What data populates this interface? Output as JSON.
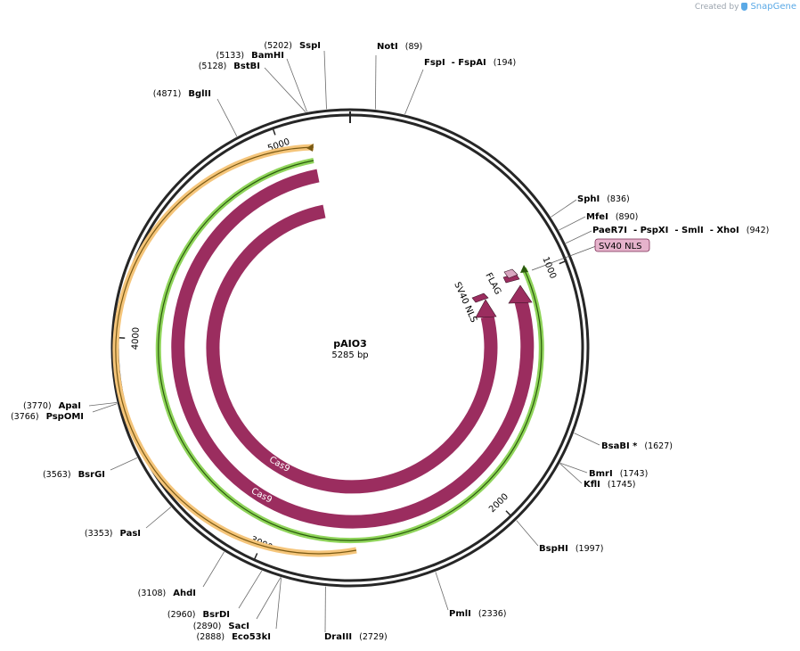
{
  "credit": {
    "prefix": "Created by",
    "brand": "SnapGene"
  },
  "plasmid": {
    "name": "pAIO3",
    "length_label": "5285 bp",
    "length": 5285
  },
  "ticks": [
    {
      "pos": 1000,
      "label": "1000"
    },
    {
      "pos": 2000,
      "label": "2000"
    },
    {
      "pos": 3000,
      "label": "3000"
    },
    {
      "pos": 4000,
      "label": "4000"
    },
    {
      "pos": 5000,
      "label": "5000"
    }
  ],
  "sites": [
    {
      "id": "noti",
      "names": [
        "NotI"
      ],
      "pos_text": "(89)"
    },
    {
      "id": "fspi",
      "names": [
        "FspI",
        "- FspAI"
      ],
      "pos_text": "(194)"
    },
    {
      "id": "sphi",
      "names": [
        "SphI"
      ],
      "pos_text": "(836)"
    },
    {
      "id": "mfei",
      "names": [
        "MfeI"
      ],
      "pos_text": "(890)"
    },
    {
      "id": "paer7i",
      "names": [
        "PaeR7I",
        "- PspXI",
        "- SmlI",
        "- XhoI"
      ],
      "pos_text": "(942)"
    },
    {
      "id": "bsabi",
      "names": [
        "BsaBI *"
      ],
      "pos_text": "(1627)"
    },
    {
      "id": "bmri",
      "names": [
        "BmrI"
      ],
      "pos_text": "(1743)"
    },
    {
      "id": "kfli",
      "names": [
        "KflI"
      ],
      "pos_text": "(1745)"
    },
    {
      "id": "bsphi",
      "names": [
        "BspHI"
      ],
      "pos_text": "(1997)"
    },
    {
      "id": "pmli",
      "names": [
        "PmlI"
      ],
      "pos_text": "(2336)"
    },
    {
      "id": "draiii",
      "names": [
        "DraIII"
      ],
      "pos_text": "(2729)"
    },
    {
      "id": "eco53ki",
      "names": [
        "Eco53kI"
      ],
      "pos_text": "(2888)"
    },
    {
      "id": "saci",
      "names": [
        "SacI"
      ],
      "pos_text": "(2890)"
    },
    {
      "id": "bsrdi",
      "names": [
        "BsrDI"
      ],
      "pos_text": "(2960)"
    },
    {
      "id": "ahdi",
      "names": [
        "AhdI"
      ],
      "pos_text": "(3108)"
    },
    {
      "id": "pasi",
      "names": [
        "PasI"
      ],
      "pos_text": "(3353)"
    },
    {
      "id": "bsrgi",
      "names": [
        "BsrGI"
      ],
      "pos_text": "(3563)"
    },
    {
      "id": "pspomi",
      "names": [
        "PspOMI"
      ],
      "pos_text": "(3766)"
    },
    {
      "id": "apai",
      "names": [
        "ApaI"
      ],
      "pos_text": "(3770)"
    },
    {
      "id": "bglii",
      "names": [
        "BglII"
      ],
      "pos_text": "(4871)"
    },
    {
      "id": "bstbi",
      "names": [
        "BstBI"
      ],
      "pos_text": "(5128)"
    },
    {
      "id": "bamhi",
      "names": [
        "BamHI"
      ],
      "pos_text": "(5133)"
    },
    {
      "id": "sspi",
      "names": [
        "SspI"
      ],
      "pos_text": "(5202)"
    }
  ],
  "features": [
    {
      "id": "sv40-nls-box",
      "label": "SV40 NLS",
      "color": "#e6b3cc"
    },
    {
      "id": "flag",
      "label": "FLAG",
      "color": "#9b2d5f"
    },
    {
      "id": "sv40-nls-inner",
      "label": "SV40 NLS",
      "color": "#9b2d5f"
    },
    {
      "id": "cas9-outer",
      "label": "Cas9",
      "color": "#9b2d5f"
    },
    {
      "id": "cas9-inner",
      "label": "Cas9",
      "color": "#9b2d5f"
    },
    {
      "id": "orf-green",
      "label": "",
      "color": "#8fd45a"
    },
    {
      "id": "orf-orange",
      "label": "",
      "color": "#f5c57a"
    }
  ],
  "colors": {
    "backbone": "#262626",
    "feature": "#9b2d5f",
    "green": "#8fd45a",
    "orange": "#f5c57a"
  }
}
